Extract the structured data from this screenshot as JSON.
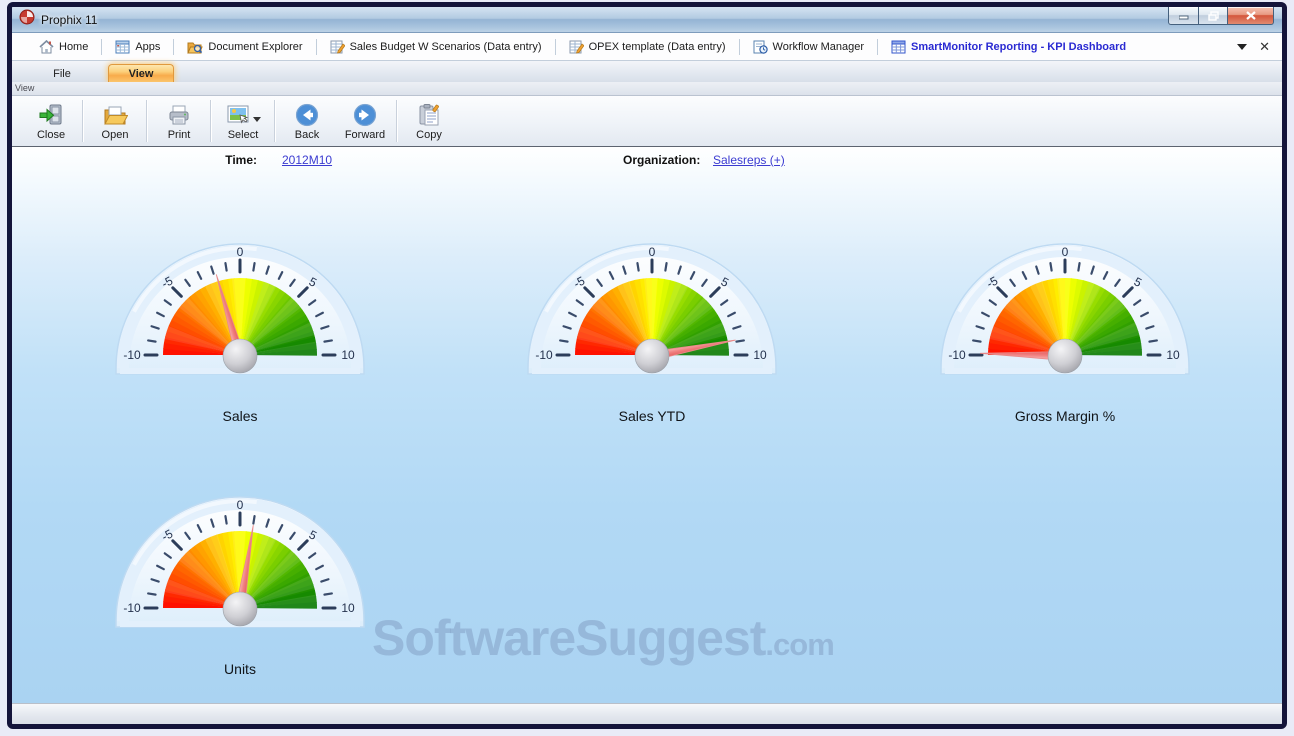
{
  "window": {
    "title": "Prophix 11"
  },
  "tabs": {
    "items": [
      {
        "label": "Home"
      },
      {
        "label": "Apps"
      },
      {
        "label": "Document Explorer"
      },
      {
        "label": "Sales Budget W Scenarios (Data entry)"
      },
      {
        "label": "OPEX template (Data entry)"
      },
      {
        "label": "Workflow Manager"
      },
      {
        "label": "SmartMonitor Reporting - KPI Dashboard"
      }
    ]
  },
  "ribbon": {
    "file_tab": "File",
    "view_tab": "View",
    "group_caption": "View"
  },
  "toolbar": {
    "buttons": [
      {
        "label": "Close"
      },
      {
        "label": "Open"
      },
      {
        "label": "Print"
      },
      {
        "label": "Select"
      },
      {
        "label": "Back"
      },
      {
        "label": "Forward"
      },
      {
        "label": "Copy"
      }
    ]
  },
  "filters": {
    "time_label": "Time:",
    "time_value": "2012M10",
    "organization_label": "Organization:",
    "organization_value": "Salesreps (+)"
  },
  "watermark": {
    "text": "SoftwareSuggest",
    "suffix": ".com"
  },
  "chart_data": [
    {
      "type": "gauge",
      "title": "Sales",
      "min": -10,
      "max": 10,
      "value": -1.8,
      "major_ticks": [
        -10,
        -5,
        0,
        5,
        10
      ],
      "minor_tick_step": 1,
      "needle_color": "#ee6a6a",
      "scale_colors": [
        "#ff1e00",
        "#ff9300",
        "#ffe800",
        "#8ed400",
        "#1caf00"
      ]
    },
    {
      "type": "gauge",
      "title": "Sales YTD",
      "min": -10,
      "max": 10,
      "value": 8.8,
      "major_ticks": [
        -10,
        -5,
        0,
        5,
        10
      ],
      "minor_tick_step": 1,
      "needle_color": "#ee6a6a",
      "scale_colors": [
        "#ff1e00",
        "#ff9300",
        "#ffe800",
        "#8ed400",
        "#1caf00"
      ]
    },
    {
      "type": "gauge",
      "title": "Gross Margin %",
      "min": -10,
      "max": 10,
      "value": -9.8,
      "major_ticks": [
        -10,
        -5,
        0,
        5,
        10
      ],
      "minor_tick_step": 1,
      "needle_color": "#ee6a6a",
      "scale_colors": [
        "#ff1e00",
        "#ff9300",
        "#ffe800",
        "#8ed400",
        "#1caf00"
      ]
    },
    {
      "type": "gauge",
      "title": "Units",
      "min": -10,
      "max": 10,
      "value": 1.0,
      "major_ticks": [
        -10,
        -5,
        0,
        5,
        10
      ],
      "minor_tick_step": 1,
      "needle_color": "#ee6a6a",
      "scale_colors": [
        "#ff1e00",
        "#ff9300",
        "#ffe800",
        "#8ed400",
        "#1caf00"
      ]
    }
  ]
}
